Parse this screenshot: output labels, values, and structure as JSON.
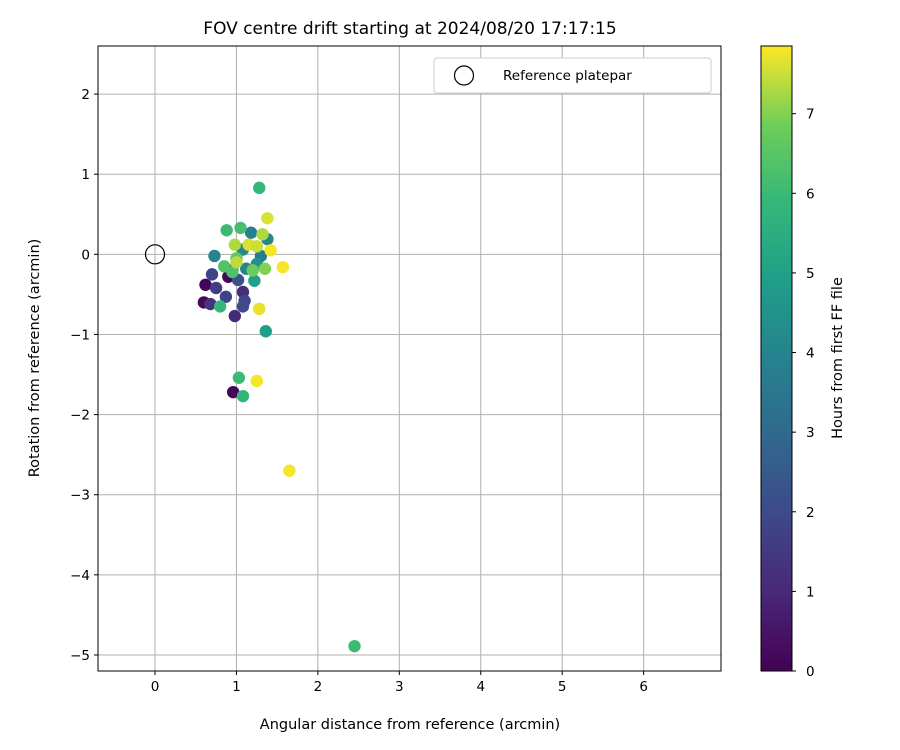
{
  "chart_data": {
    "type": "scatter",
    "title": "FOV centre drift starting at 2024/08/20 17:17:15",
    "xlabel": "Angular distance from reference (arcmin)",
    "ylabel": "Rotation from reference (arcmin)",
    "xlim": [
      -0.7,
      6.95
    ],
    "ylim": [
      -5.2,
      2.6
    ],
    "xticks": [
      0,
      1,
      2,
      3,
      4,
      5,
      6
    ],
    "yticks": [
      -5,
      -4,
      -3,
      -2,
      -1,
      0,
      1,
      2
    ],
    "grid": true,
    "legend": {
      "placement": "top-right",
      "entries": [
        "Reference platepar"
      ]
    },
    "reference_point": {
      "name": "Reference platepar",
      "x": 0,
      "y": 0
    },
    "colorbar": {
      "label": "Hours from first FF file",
      "colormap": "viridis",
      "range": [
        0,
        7.85
      ],
      "ticks": [
        0,
        1,
        2,
        3,
        4,
        5,
        6,
        7
      ]
    },
    "points": [
      {
        "x": 0.62,
        "y": -0.38,
        "c": 0.1
      },
      {
        "x": 0.6,
        "y": -0.6,
        "c": 0.2
      },
      {
        "x": 0.96,
        "y": -1.72,
        "c": 0.1
      },
      {
        "x": 0.9,
        "y": -0.28,
        "c": 0.2
      },
      {
        "x": 0.98,
        "y": -0.77,
        "c": 1.0
      },
      {
        "x": 0.68,
        "y": -0.62,
        "c": 1.3
      },
      {
        "x": 0.7,
        "y": -0.25,
        "c": 1.8
      },
      {
        "x": 0.75,
        "y": -0.42,
        "c": 1.6
      },
      {
        "x": 0.87,
        "y": -0.53,
        "c": 1.8
      },
      {
        "x": 1.08,
        "y": -0.47,
        "c": 1.1
      },
      {
        "x": 1.1,
        "y": -0.58,
        "c": 1.9
      },
      {
        "x": 1.08,
        "y": -0.65,
        "c": 2.0
      },
      {
        "x": 1.02,
        "y": -0.32,
        "c": 2.2
      },
      {
        "x": 0.95,
        "y": -0.2,
        "c": 1.0
      },
      {
        "x": 0.73,
        "y": -0.02,
        "c": 4.0
      },
      {
        "x": 1.08,
        "y": 0.06,
        "c": 4.2
      },
      {
        "x": 1.18,
        "y": 0.27,
        "c": 3.9
      },
      {
        "x": 1.38,
        "y": 0.19,
        "c": 4.1
      },
      {
        "x": 1.3,
        "y": -0.02,
        "c": 3.8
      },
      {
        "x": 1.25,
        "y": -0.12,
        "c": 4.4
      },
      {
        "x": 1.12,
        "y": -0.18,
        "c": 4.0
      },
      {
        "x": 1.36,
        "y": -0.96,
        "c": 4.9
      },
      {
        "x": 1.22,
        "y": -0.33,
        "c": 5.0
      },
      {
        "x": 1.28,
        "y": 0.83,
        "c": 5.9
      },
      {
        "x": 0.88,
        "y": 0.3,
        "c": 6.0
      },
      {
        "x": 1.05,
        "y": 0.33,
        "c": 6.2
      },
      {
        "x": 0.8,
        "y": -0.65,
        "c": 5.9
      },
      {
        "x": 1.03,
        "y": -1.54,
        "c": 6.0
      },
      {
        "x": 1.08,
        "y": -1.77,
        "c": 5.8
      },
      {
        "x": 2.45,
        "y": -4.89,
        "c": 6.0
      },
      {
        "x": 0.85,
        "y": -0.15,
        "c": 6.4
      },
      {
        "x": 0.95,
        "y": -0.22,
        "c": 6.3
      },
      {
        "x": 1.0,
        "y": -0.05,
        "c": 6.6
      },
      {
        "x": 1.2,
        "y": -0.2,
        "c": 6.8
      },
      {
        "x": 1.32,
        "y": 0.25,
        "c": 7.3
      },
      {
        "x": 1.38,
        "y": 0.45,
        "c": 7.6
      },
      {
        "x": 1.42,
        "y": 0.05,
        "c": 7.8
      },
      {
        "x": 1.57,
        "y": -0.16,
        "c": 7.8
      },
      {
        "x": 1.28,
        "y": -0.68,
        "c": 7.7
      },
      {
        "x": 1.25,
        "y": -1.58,
        "c": 7.8
      },
      {
        "x": 1.65,
        "y": -2.7,
        "c": 7.8
      },
      {
        "x": 1.35,
        "y": -0.18,
        "c": 7.0
      },
      {
        "x": 0.98,
        "y": 0.12,
        "c": 7.3
      },
      {
        "x": 1.15,
        "y": 0.12,
        "c": 7.6
      },
      {
        "x": 1.25,
        "y": 0.1,
        "c": 7.5
      },
      {
        "x": 1.0,
        "y": -0.1,
        "c": 7.4
      }
    ]
  }
}
